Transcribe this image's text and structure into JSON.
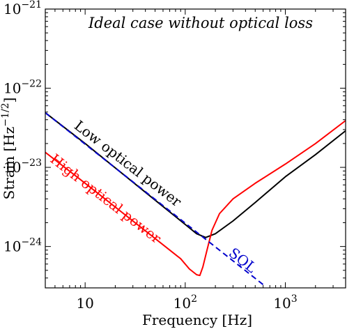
{
  "chart_data": {
    "type": "line",
    "title": "Ideal case without optical loss",
    "xlabel": "Frequency [Hz]",
    "ylabel": "Strain [Hz^-1/2]",
    "ylabel_parts": {
      "main": "Strain [Hz",
      "sup": "−1/2",
      "close": "]"
    },
    "x_scale": "log",
    "y_scale": "log",
    "xlim": [
      4,
      4000
    ],
    "ylim": [
      3e-25,
      1e-21
    ],
    "grid": false,
    "x_ticks": [
      {
        "value": 10,
        "base": "10",
        "exp": ""
      },
      {
        "value": 100,
        "base": "10",
        "exp": "2"
      },
      {
        "value": 1000,
        "base": "10",
        "exp": "3"
      }
    ],
    "y_ticks": [
      {
        "value": 1e-21,
        "base": "10",
        "exp": "−21"
      },
      {
        "value": 1e-22,
        "base": "10",
        "exp": "−22"
      },
      {
        "value": 1e-23,
        "base": "10",
        "exp": "−23"
      },
      {
        "value": 1e-24,
        "base": "10",
        "exp": "−24"
      }
    ],
    "series": [
      {
        "name": "Low optical power",
        "color": "#000000",
        "style": "solid",
        "points": [
          [
            4,
            4.9e-23
          ],
          [
            10,
            2e-23
          ],
          [
            30,
            6.5e-24
          ],
          [
            60,
            3.2e-24
          ],
          [
            100,
            1.9e-24
          ],
          [
            130,
            1.45e-24
          ],
          [
            160,
            1.3e-24
          ],
          [
            200,
            1.45e-24
          ],
          [
            300,
            2.1e-24
          ],
          [
            500,
            3.6e-24
          ],
          [
            1000,
            7.6e-24
          ],
          [
            2000,
            1.45e-23
          ],
          [
            4000,
            2.9e-23
          ]
        ]
      },
      {
        "name": "High optical power",
        "color": "#ff0000",
        "style": "solid",
        "points": [
          [
            4,
            1.55e-23
          ],
          [
            10,
            6.3e-24
          ],
          [
            30,
            2.1e-24
          ],
          [
            60,
            1.05e-24
          ],
          [
            90,
            7e-25
          ],
          [
            110,
            5.2e-25
          ],
          [
            130,
            4.4e-25
          ],
          [
            140,
            4.3e-25
          ],
          [
            150,
            5.5e-25
          ],
          [
            165,
            9e-25
          ],
          [
            185,
            1.6e-24
          ],
          [
            220,
            2.6e-24
          ],
          [
            300,
            4e-24
          ],
          [
            500,
            6.3e-24
          ],
          [
            1000,
            1.1e-23
          ],
          [
            2000,
            2e-23
          ],
          [
            4000,
            3.9e-23
          ]
        ]
      },
      {
        "name": "SQL",
        "color": "#0000cc",
        "style": "dashed",
        "points": [
          [
            4,
            4.9e-23
          ],
          [
            600,
            3.3e-25
          ]
        ]
      }
    ],
    "annotations": [
      {
        "text": "Low optical power",
        "color": "#000000",
        "anchor": [
          25,
          1e-23
        ]
      },
      {
        "text": "High optical power",
        "color": "#ff0000",
        "anchor": [
          15,
          3.6e-24
        ]
      },
      {
        "text": "SQL",
        "color": "#0000cc",
        "anchor": [
          350,
          6e-25
        ]
      }
    ]
  }
}
